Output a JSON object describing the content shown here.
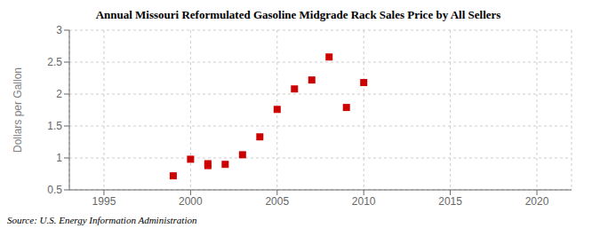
{
  "chart_data": {
    "type": "scatter",
    "title": "Annual Missouri Reformulated Gasoline Midgrade Rack Sales Price by All Sellers",
    "y_label": "Dollars per Gallon",
    "annotation": "Source: U.S. Energy Information Administration",
    "x": [
      1999,
      2000,
      2001,
      2001,
      2002,
      2003,
      2004,
      2005,
      2006,
      2007,
      2008,
      2009,
      2010
    ],
    "values": [
      0.72,
      0.98,
      0.91,
      0.88,
      0.9,
      1.05,
      1.33,
      1.76,
      2.08,
      2.22,
      2.58,
      1.79,
      2.18
    ],
    "color": "#cc0000",
    "marker": "square",
    "xlim": [
      1993,
      2022
    ],
    "ylim": [
      0.5,
      3.0
    ],
    "xticks": [
      1995,
      2000,
      2005,
      2010,
      2015,
      2020
    ],
    "yticks": [
      0.5,
      1.0,
      1.5,
      2.0,
      2.5,
      3.0
    ],
    "grid": true
  }
}
